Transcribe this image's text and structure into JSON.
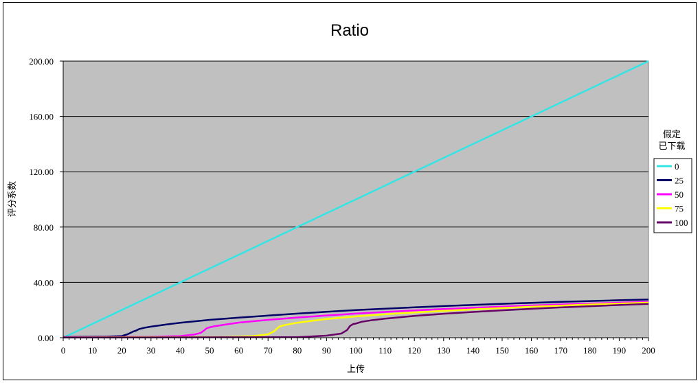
{
  "chart_data": {
    "type": "line",
    "title": "Ratio",
    "xlabel": "上传",
    "ylabel": "评分系数",
    "xlim": [
      0,
      200
    ],
    "ylim": [
      0,
      200
    ],
    "x_ticks": [
      0,
      10,
      20,
      30,
      40,
      50,
      60,
      70,
      80,
      90,
      100,
      110,
      120,
      130,
      140,
      150,
      160,
      170,
      180,
      190,
      200
    ],
    "y_ticks": [
      "0.00",
      "40.00",
      "80.00",
      "120.00",
      "160.00",
      "200.00"
    ],
    "y_tick_values": [
      0,
      40,
      80,
      120,
      160,
      200
    ],
    "grid": "horizontal",
    "plot_background": "#c0c0c0",
    "legend": {
      "title": [
        "假定",
        "已下载"
      ],
      "placement": "right"
    },
    "series": [
      {
        "name": "0",
        "color": "#33e5e5",
        "points": [
          [
            0,
            0
          ],
          [
            200,
            200
          ]
        ]
      },
      {
        "name": "25",
        "color": "#000066",
        "points": [
          [
            0,
            0.5
          ],
          [
            15,
            0.8
          ],
          [
            20,
            1.2
          ],
          [
            22,
            2.5
          ],
          [
            24,
            4.5
          ],
          [
            25,
            5.2
          ],
          [
            26,
            6.3
          ],
          [
            28,
            7.3
          ],
          [
            30,
            8.0
          ],
          [
            35,
            9.5
          ],
          [
            40,
            10.8
          ],
          [
            50,
            12.9
          ],
          [
            60,
            14.5
          ],
          [
            70,
            16.0
          ],
          [
            80,
            17.4
          ],
          [
            90,
            18.7
          ],
          [
            100,
            20.0
          ],
          [
            110,
            21.0
          ],
          [
            120,
            22.0
          ],
          [
            130,
            22.9
          ],
          [
            140,
            23.7
          ],
          [
            150,
            24.5
          ],
          [
            160,
            25.2
          ],
          [
            170,
            25.9
          ],
          [
            180,
            26.5
          ],
          [
            190,
            27.1
          ],
          [
            200,
            27.6
          ]
        ]
      },
      {
        "name": "50",
        "color": "#ff00ff",
        "points": [
          [
            0,
            0.3
          ],
          [
            30,
            0.6
          ],
          [
            40,
            1.2
          ],
          [
            45,
            2.4
          ],
          [
            47,
            3.5
          ],
          [
            48,
            5.0
          ],
          [
            49,
            6.8
          ],
          [
            50,
            7.5
          ],
          [
            52,
            8.4
          ],
          [
            55,
            9.4
          ],
          [
            60,
            10.9
          ],
          [
            70,
            12.9
          ],
          [
            80,
            14.6
          ],
          [
            90,
            16.1
          ],
          [
            100,
            17.4
          ],
          [
            110,
            18.6
          ],
          [
            120,
            19.7
          ],
          [
            130,
            20.7
          ],
          [
            140,
            21.6
          ],
          [
            150,
            22.5
          ],
          [
            160,
            23.3
          ],
          [
            170,
            24.0
          ],
          [
            180,
            24.7
          ],
          [
            190,
            25.3
          ],
          [
            200,
            25.9
          ]
        ]
      },
      {
        "name": "75",
        "color": "#ffff00",
        "points": [
          [
            0,
            0.2
          ],
          [
            55,
            0.5
          ],
          [
            65,
            1.2
          ],
          [
            70,
            2.5
          ],
          [
            72,
            4.5
          ],
          [
            73,
            6.5
          ],
          [
            74,
            8.2
          ],
          [
            76,
            9.3
          ],
          [
            80,
            10.8
          ],
          [
            85,
            12.2
          ],
          [
            90,
            13.5
          ],
          [
            100,
            15.4
          ],
          [
            110,
            16.9
          ],
          [
            120,
            18.2
          ],
          [
            130,
            19.4
          ],
          [
            140,
            20.5
          ],
          [
            150,
            21.5
          ],
          [
            160,
            22.4
          ],
          [
            170,
            23.2
          ],
          [
            180,
            24.0
          ],
          [
            190,
            24.7
          ],
          [
            200,
            25.3
          ]
        ]
      },
      {
        "name": "100",
        "color": "#660066",
        "points": [
          [
            0,
            0.1
          ],
          [
            80,
            0.4
          ],
          [
            90,
            1.5
          ],
          [
            95,
            3.0
          ],
          [
            97,
            5.5
          ],
          [
            98,
            8.5
          ],
          [
            99,
            9.8
          ],
          [
            100,
            10.2
          ],
          [
            102,
            11.5
          ],
          [
            105,
            12.5
          ],
          [
            110,
            13.8
          ],
          [
            120,
            15.8
          ],
          [
            130,
            17.3
          ],
          [
            140,
            18.6
          ],
          [
            150,
            19.8
          ],
          [
            160,
            20.9
          ],
          [
            170,
            21.9
          ],
          [
            180,
            22.8
          ],
          [
            190,
            23.6
          ],
          [
            200,
            24.4
          ]
        ]
      }
    ]
  }
}
